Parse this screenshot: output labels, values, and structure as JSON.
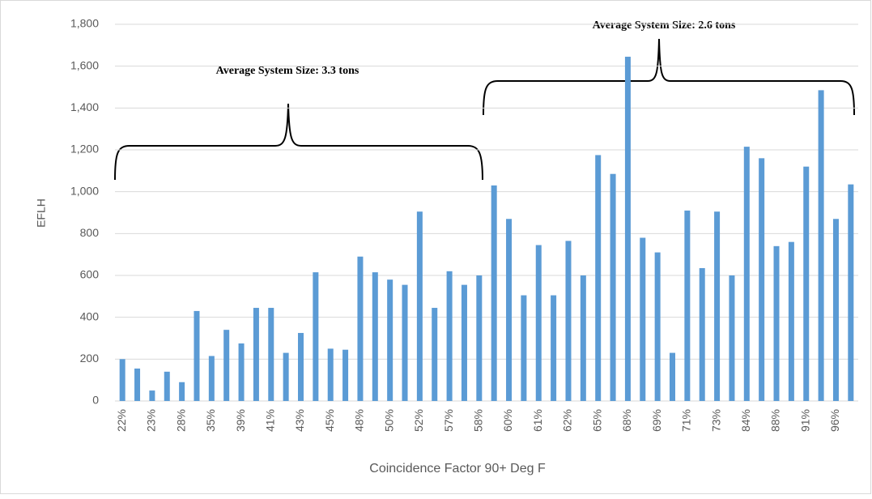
{
  "chart_data": {
    "type": "bar",
    "y_label": "EFLH",
    "x_label": "Coincidence Factor 90+ Deg F",
    "annotations": [
      "Average System Size: 3.3 tons",
      "Average System Size: 2.6 tons"
    ],
    "color": "#5b9bd5",
    "grid": true,
    "ylim": [
      0,
      1800
    ],
    "yticks": [
      0,
      200,
      400,
      600,
      800,
      {
        "value": 1000,
        "label": "1,000"
      },
      {
        "value": 1200,
        "label": "1,200"
      },
      {
        "value": 1400,
        "label": "1,400"
      },
      {
        "value": 1600,
        "label": "1,600"
      },
      {
        "value": 1800,
        "label": "1,800"
      }
    ],
    "categories": [
      "22%",
      null,
      "23%",
      null,
      "28%",
      null,
      "35%",
      null,
      "39%",
      null,
      "41%",
      null,
      "43%",
      null,
      "45%",
      null,
      "48%",
      null,
      "50%",
      null,
      "52%",
      null,
      "57%",
      null,
      "58%",
      null,
      "60%",
      null,
      "61%",
      null,
      "62%",
      null,
      "65%",
      null,
      "68%",
      null,
      "69%",
      null,
      "71%",
      null,
      "73%",
      null,
      "84%",
      null,
      "88%",
      null,
      "91%",
      null,
      "96%",
      null
    ],
    "values": [
      200,
      155,
      50,
      140,
      90,
      430,
      215,
      340,
      275,
      445,
      445,
      230,
      325,
      615,
      250,
      245,
      690,
      615,
      580,
      555,
      905,
      445,
      620,
      555,
      600,
      1030,
      870,
      505,
      745,
      505,
      765,
      600,
      1175,
      1085,
      1645,
      780,
      710,
      230,
      910,
      635,
      905,
      600,
      1215,
      1160,
      740,
      760,
      1120,
      1485,
      870,
      1035
    ]
  }
}
